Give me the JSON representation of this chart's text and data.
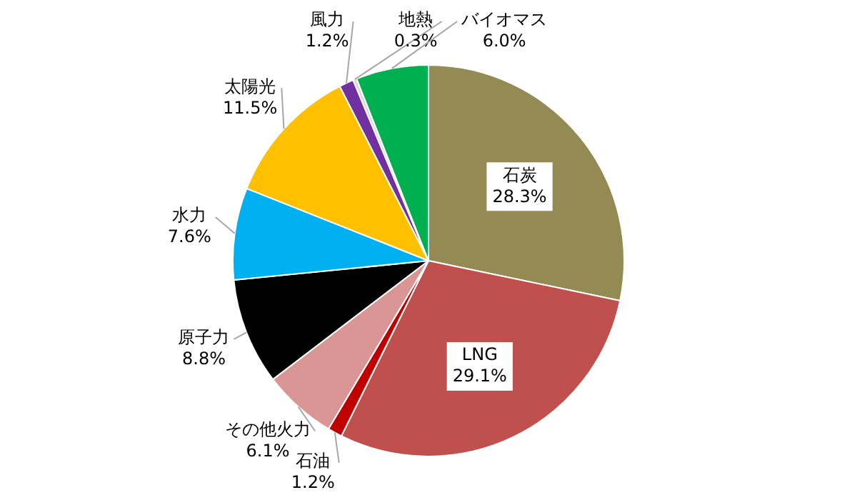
{
  "chart_data": {
    "type": "pie",
    "categories": [
      "石炭",
      "LNG",
      "石油",
      "その他火力",
      "原子力",
      "水力",
      "太陽光",
      "風力",
      "地熱",
      "バイオマス"
    ],
    "values": [
      28.3,
      29.1,
      1.2,
      6.1,
      8.8,
      7.6,
      11.5,
      1.2,
      0.3,
      6.0
    ],
    "colors": [
      "#948a54",
      "#c0504d",
      "#c00000",
      "#da9694",
      "#000000",
      "#00b0f0",
      "#ffc000",
      "#7030a0",
      "#d9d9d9",
      "#00b050"
    ],
    "value_labels": [
      "28.3%",
      "29.1%",
      "1.2%",
      "6.1%",
      "8.8%",
      "7.6%",
      "11.5%",
      "1.2%",
      "0.3%",
      "6.0%"
    ],
    "legend": false
  }
}
